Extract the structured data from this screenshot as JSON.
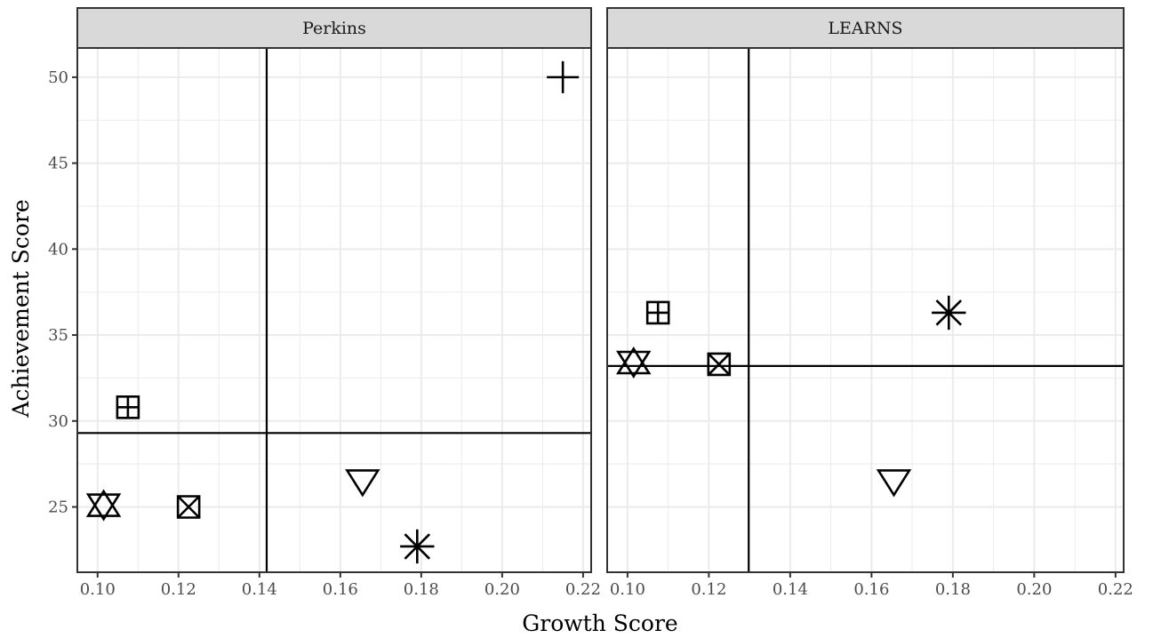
{
  "chart_data": {
    "type": "scatter",
    "xlabel": "Growth Score",
    "ylabel": "Achievement Score",
    "xlim": [
      0.095,
      0.222
    ],
    "ylim": [
      21.2,
      51.7
    ],
    "x_ticks": [
      0.1,
      0.12,
      0.14,
      0.16,
      0.18,
      0.2,
      0.22
    ],
    "x_tick_labels": [
      "0.10",
      "0.12",
      "0.14",
      "0.16",
      "0.18",
      "0.20",
      "0.22"
    ],
    "y_ticks": [
      25,
      30,
      35,
      40,
      45,
      50
    ],
    "y_tick_labels": [
      "25",
      "30",
      "35",
      "40",
      "45",
      "50"
    ],
    "grid": true,
    "legend": "none",
    "panels": [
      {
        "label": "Perkins",
        "vline_x": 0.1418,
        "hline_y": 29.3,
        "points": [
          {
            "x": 0.215,
            "y": 50.0,
            "shape": "plus"
          },
          {
            "x": 0.1075,
            "y": 30.8,
            "shape": "square-plus"
          },
          {
            "x": 0.1015,
            "y": 25.1,
            "shape": "triangle-up"
          },
          {
            "x": 0.1015,
            "y": 25.1,
            "shape": "triangle-down"
          },
          {
            "x": 0.1225,
            "y": 25.0,
            "shape": "square-x"
          },
          {
            "x": 0.1655,
            "y": 26.5,
            "shape": "triangle-down"
          },
          {
            "x": 0.179,
            "y": 22.7,
            "shape": "asterisk"
          }
        ]
      },
      {
        "label": "LEARNS",
        "vline_x": 0.1298,
        "hline_y": 33.2,
        "points": [
          {
            "x": 0.1075,
            "y": 36.3,
            "shape": "square-plus"
          },
          {
            "x": 0.179,
            "y": 36.3,
            "shape": "asterisk"
          },
          {
            "x": 0.1015,
            "y": 33.4,
            "shape": "triangle-up"
          },
          {
            "x": 0.1015,
            "y": 33.4,
            "shape": "triangle-down"
          },
          {
            "x": 0.1225,
            "y": 33.3,
            "shape": "square-x"
          },
          {
            "x": 0.1655,
            "y": 26.5,
            "shape": "triangle-down"
          }
        ]
      }
    ]
  }
}
